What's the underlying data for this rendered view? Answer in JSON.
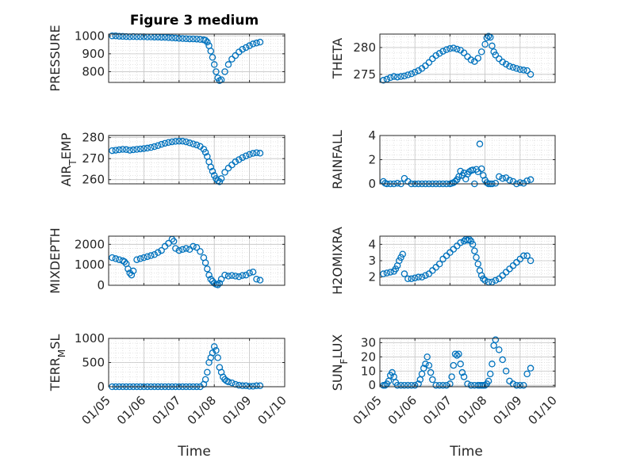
{
  "figure": {
    "title": "Figure 3 medium",
    "marker_color": "#0072BD",
    "x_tick_labels": [
      "01/05",
      "01/06",
      "01/07",
      "01/08",
      "01/09",
      "01/10"
    ],
    "x_label": "Time"
  },
  "chart_data": [
    {
      "type": "scatter",
      "ylabel": "PRESSURE",
      "xlim": [
        5,
        10
      ],
      "ylim": [
        740,
        1010
      ],
      "yticks": [
        800,
        900,
        1000
      ],
      "grid": true,
      "minor_grid": true,
      "x": [
        5.1,
        5.2,
        5.3,
        5.4,
        5.5,
        5.6,
        5.7,
        5.8,
        5.9,
        6.0,
        6.1,
        6.2,
        6.3,
        6.4,
        6.5,
        6.6,
        6.7,
        6.8,
        6.9,
        7.0,
        7.1,
        7.2,
        7.3,
        7.4,
        7.5,
        7.6,
        7.7,
        7.75,
        7.8,
        7.85,
        7.9,
        7.95,
        8.0,
        8.05,
        8.1,
        8.15,
        8.2,
        8.3,
        8.4,
        8.5,
        8.6,
        8.7,
        8.8,
        8.9,
        9.0,
        9.1,
        9.2,
        9.3
      ],
      "y": [
        1000,
        1000,
        998,
        997,
        996,
        995,
        996,
        995,
        995,
        995,
        994,
        994,
        993,
        993,
        992,
        992,
        990,
        989,
        988,
        986,
        985,
        984,
        983,
        983,
        982,
        980,
        978,
        975,
        965,
        945,
        915,
        880,
        840,
        800,
        765,
        750,
        755,
        800,
        840,
        870,
        890,
        910,
        925,
        935,
        945,
        955,
        960,
        965
      ]
    },
    {
      "type": "scatter",
      "ylabel": "THETA",
      "xlim": [
        5,
        10
      ],
      "ylim": [
        273.5,
        282.5
      ],
      "yticks": [
        275,
        280
      ],
      "grid": true,
      "minor_grid": true,
      "x": [
        5.1,
        5.2,
        5.3,
        5.4,
        5.5,
        5.6,
        5.7,
        5.8,
        5.9,
        6.0,
        6.1,
        6.2,
        6.3,
        6.4,
        6.5,
        6.6,
        6.7,
        6.8,
        6.9,
        7.0,
        7.1,
        7.2,
        7.3,
        7.4,
        7.5,
        7.6,
        7.7,
        7.8,
        7.9,
        8.0,
        8.05,
        8.1,
        8.15,
        8.2,
        8.25,
        8.3,
        8.4,
        8.5,
        8.6,
        8.7,
        8.8,
        8.9,
        9.0,
        9.1,
        9.2,
        9.3
      ],
      "y": [
        273.9,
        274.1,
        274.4,
        274.6,
        274.5,
        274.6,
        274.7,
        274.9,
        275.1,
        275.4,
        275.7,
        276.1,
        276.6,
        277.2,
        277.9,
        278.5,
        278.9,
        279.3,
        279.6,
        279.8,
        279.9,
        279.7,
        279.5,
        279.0,
        278.3,
        277.7,
        277.4,
        278.0,
        279.2,
        280.6,
        281.8,
        282.1,
        281.9,
        280.3,
        279.2,
        278.6,
        277.9,
        277.3,
        276.9,
        276.5,
        276.3,
        276.1,
        275.9,
        275.8,
        275.7,
        275.0
      ]
    },
    {
      "type": "scatter",
      "ylabel": "AIR_TEMP",
      "xlim": [
        5,
        10
      ],
      "ylim": [
        258,
        281
      ],
      "yticks": [
        260,
        270,
        280
      ],
      "grid": true,
      "minor_grid": true,
      "x": [
        5.1,
        5.2,
        5.3,
        5.4,
        5.5,
        5.6,
        5.7,
        5.8,
        5.9,
        6.0,
        6.1,
        6.2,
        6.3,
        6.4,
        6.5,
        6.6,
        6.7,
        6.8,
        6.9,
        7.0,
        7.1,
        7.2,
        7.3,
        7.4,
        7.5,
        7.6,
        7.7,
        7.75,
        7.8,
        7.85,
        7.9,
        7.95,
        8.0,
        8.05,
        8.1,
        8.15,
        8.2,
        8.3,
        8.4,
        8.5,
        8.6,
        8.7,
        8.8,
        8.9,
        9.0,
        9.1,
        9.2,
        9.3
      ],
      "y": [
        273.8,
        274.0,
        274.2,
        274.4,
        274.3,
        274.0,
        274.2,
        274.4,
        274.6,
        274.8,
        275.0,
        275.3,
        275.7,
        276.2,
        276.8,
        277.3,
        277.7,
        278.0,
        278.2,
        278.3,
        278.3,
        278.0,
        277.5,
        277.0,
        276.5,
        275.8,
        274.5,
        273.0,
        271.0,
        268.5,
        266.0,
        264.0,
        262.0,
        260.5,
        259.5,
        259.0,
        260.5,
        263.5,
        265.5,
        267.0,
        268.5,
        269.5,
        270.5,
        271.3,
        272.0,
        272.5,
        272.8,
        272.6
      ]
    },
    {
      "type": "scatter",
      "ylabel": "RAINFALL",
      "xlim": [
        5,
        10
      ],
      "ylim": [
        0,
        4
      ],
      "yticks": [
        0,
        2,
        4
      ],
      "grid": true,
      "minor_grid": true,
      "x": [
        5.1,
        5.15,
        5.2,
        5.3,
        5.4,
        5.5,
        5.6,
        5.7,
        5.8,
        5.9,
        6.0,
        6.1,
        6.2,
        6.3,
        6.4,
        6.5,
        6.6,
        6.7,
        6.8,
        6.9,
        7.0,
        7.05,
        7.1,
        7.15,
        7.2,
        7.25,
        7.3,
        7.35,
        7.4,
        7.45,
        7.5,
        7.55,
        7.6,
        7.65,
        7.7,
        7.75,
        7.8,
        7.85,
        7.9,
        7.95,
        8.0,
        8.05,
        8.1,
        8.15,
        8.2,
        8.3,
        8.4,
        8.5,
        8.6,
        8.7,
        8.8,
        8.9,
        9.0,
        9.1,
        9.2,
        9.3
      ],
      "y": [
        0.2,
        0.05,
        0.0,
        0.0,
        0.0,
        0.05,
        0.0,
        0.45,
        0.2,
        0.0,
        0.0,
        0.0,
        0.0,
        0.0,
        0.0,
        0.0,
        0.0,
        0.0,
        0.0,
        0.0,
        0.0,
        0.05,
        0.1,
        0.2,
        0.35,
        0.6,
        1.05,
        0.7,
        0.9,
        0.4,
        0.8,
        1.0,
        1.1,
        1.15,
        0.0,
        1.2,
        1.0,
        3.3,
        1.25,
        0.7,
        0.3,
        0.1,
        0.0,
        0.0,
        0.0,
        0.05,
        0.6,
        0.45,
        0.5,
        0.3,
        0.2,
        0.0,
        0.1,
        0.05,
        0.25,
        0.35
      ]
    },
    {
      "type": "scatter",
      "ylabel": "MIXDEPTH",
      "xlim": [
        5,
        10
      ],
      "ylim": [
        0,
        2400
      ],
      "yticks": [
        0,
        1000,
        2000
      ],
      "grid": true,
      "minor_grid": true,
      "x": [
        5.1,
        5.2,
        5.3,
        5.4,
        5.45,
        5.5,
        5.55,
        5.6,
        5.65,
        5.7,
        5.8,
        5.9,
        6.0,
        6.1,
        6.2,
        6.3,
        6.4,
        6.5,
        6.6,
        6.7,
        6.8,
        6.85,
        6.9,
        7.0,
        7.1,
        7.2,
        7.3,
        7.4,
        7.5,
        7.6,
        7.7,
        7.75,
        7.8,
        7.85,
        7.9,
        7.95,
        8.0,
        8.05,
        8.1,
        8.15,
        8.2,
        8.3,
        8.4,
        8.5,
        8.6,
        8.7,
        8.8,
        8.9,
        9.0,
        9.1,
        9.2,
        9.3
      ],
      "y": [
        1350,
        1300,
        1250,
        1200,
        1150,
        1050,
        800,
        600,
        500,
        700,
        1250,
        1300,
        1350,
        1400,
        1450,
        1500,
        1600,
        1700,
        1900,
        2050,
        2250,
        2150,
        1800,
        1700,
        1750,
        1800,
        1750,
        1900,
        1850,
        1650,
        1350,
        1100,
        800,
        500,
        300,
        200,
        100,
        50,
        20,
        100,
        300,
        500,
        450,
        480,
        450,
        420,
        480,
        500,
        600,
        650,
        300,
        250
      ]
    },
    {
      "type": "scatter",
      "ylabel": "H2OMIXRA",
      "xlim": [
        5,
        10
      ],
      "ylim": [
        1.5,
        4.5
      ],
      "yticks": [
        2,
        3,
        4
      ],
      "grid": true,
      "minor_grid": true,
      "x": [
        5.1,
        5.2,
        5.3,
        5.4,
        5.45,
        5.5,
        5.55,
        5.6,
        5.65,
        5.7,
        5.8,
        5.9,
        6.0,
        6.1,
        6.2,
        6.3,
        6.4,
        6.5,
        6.6,
        6.7,
        6.8,
        6.9,
        7.0,
        7.1,
        7.2,
        7.3,
        7.4,
        7.45,
        7.5,
        7.55,
        7.6,
        7.65,
        7.7,
        7.75,
        7.8,
        7.85,
        7.9,
        7.95,
        8.0,
        8.1,
        8.2,
        8.3,
        8.4,
        8.5,
        8.6,
        8.7,
        8.8,
        8.9,
        9.0,
        9.1,
        9.2,
        9.3
      ],
      "y": [
        2.2,
        2.25,
        2.3,
        2.35,
        2.5,
        2.7,
        3.0,
        3.2,
        3.4,
        2.2,
        1.9,
        1.9,
        1.95,
        2.0,
        2.0,
        2.1,
        2.2,
        2.4,
        2.6,
        2.8,
        3.1,
        3.3,
        3.5,
        3.7,
        3.9,
        4.1,
        4.2,
        4.3,
        4.25,
        4.3,
        4.2,
        4.0,
        3.6,
        3.2,
        2.8,
        2.4,
        2.1,
        1.9,
        1.8,
        1.7,
        1.7,
        1.8,
        1.9,
        2.1,
        2.3,
        2.5,
        2.7,
        2.9,
        3.1,
        3.3,
        3.3,
        3.0
      ]
    },
    {
      "type": "scatter",
      "ylabel": "TERR_MSL",
      "xlim": [
        5,
        10
      ],
      "ylim": [
        0,
        1000
      ],
      "yticks": [
        0,
        500,
        1000
      ],
      "grid": true,
      "minor_grid": true,
      "x": [
        5.1,
        5.2,
        5.3,
        5.4,
        5.5,
        5.6,
        5.7,
        5.8,
        5.9,
        6.0,
        6.1,
        6.2,
        6.3,
        6.4,
        6.5,
        6.6,
        6.7,
        6.8,
        6.9,
        7.0,
        7.1,
        7.2,
        7.3,
        7.4,
        7.5,
        7.6,
        7.7,
        7.75,
        7.8,
        7.85,
        7.9,
        7.95,
        8.0,
        8.05,
        8.1,
        8.15,
        8.2,
        8.25,
        8.3,
        8.35,
        8.4,
        8.5,
        8.6,
        8.7,
        8.8,
        8.9,
        9.0,
        9.1,
        9.2,
        9.3
      ],
      "y": [
        0,
        0,
        0,
        0,
        0,
        0,
        0,
        0,
        0,
        0,
        0,
        0,
        0,
        0,
        0,
        0,
        0,
        0,
        0,
        0,
        0,
        0,
        0,
        0,
        0,
        0,
        50,
        150,
        300,
        500,
        600,
        700,
        830,
        750,
        600,
        400,
        300,
        200,
        150,
        120,
        100,
        80,
        50,
        30,
        20,
        20,
        10,
        10,
        20,
        20
      ]
    },
    {
      "type": "scatter",
      "ylabel": "SUN_FLUX",
      "xlim": [
        5,
        10
      ],
      "ylim": [
        -1,
        33
      ],
      "yticks": [
        0,
        10,
        20,
        30
      ],
      "grid": true,
      "minor_grid": true,
      "x": [
        5.1,
        5.15,
        5.2,
        5.25,
        5.3,
        5.35,
        5.4,
        5.45,
        5.5,
        5.6,
        5.7,
        5.8,
        5.9,
        6.0,
        6.1,
        6.15,
        6.2,
        6.25,
        6.3,
        6.35,
        6.4,
        6.45,
        6.5,
        6.6,
        6.7,
        6.8,
        6.9,
        7.0,
        7.05,
        7.1,
        7.15,
        7.2,
        7.25,
        7.3,
        7.35,
        7.4,
        7.5,
        7.6,
        7.7,
        7.8,
        7.85,
        7.9,
        7.95,
        8.0,
        8.05,
        8.1,
        8.15,
        8.2,
        8.25,
        8.3,
        8.4,
        8.5,
        8.6,
        8.7,
        8.8,
        8.9,
        9.0,
        9.1,
        9.2,
        9.3
      ],
      "y": [
        0,
        0,
        1,
        3,
        7,
        9,
        6,
        2,
        0,
        0,
        0,
        0,
        0,
        0,
        1,
        4,
        8,
        12,
        15,
        20,
        14,
        9,
        4,
        0,
        0,
        0,
        0,
        1,
        6,
        14,
        22,
        21,
        22,
        15,
        9,
        6,
        1,
        0,
        0,
        0,
        0,
        0,
        0,
        0,
        1,
        3,
        8,
        15,
        28,
        32,
        25,
        18,
        10,
        3,
        1,
        0,
        0,
        0,
        8,
        12
      ]
    }
  ]
}
